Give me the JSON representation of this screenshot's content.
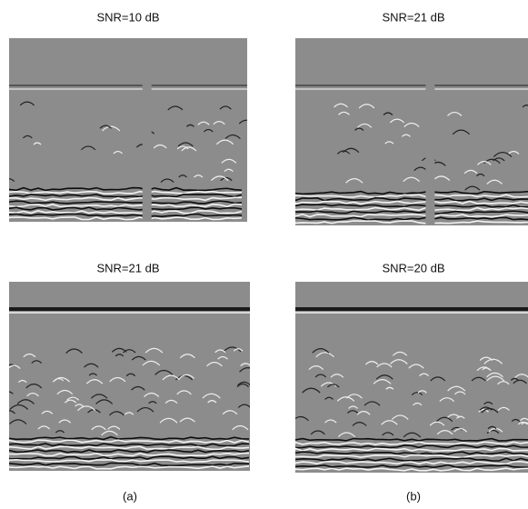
{
  "panels": [
    {
      "title": "SNR=10 dB"
    },
    {
      "title": "SNR=21 dB"
    },
    {
      "title": "SNR=21 dB"
    },
    {
      "title": "SNR=20 dB"
    }
  ],
  "captions": [
    "(a)",
    "(b)"
  ]
}
